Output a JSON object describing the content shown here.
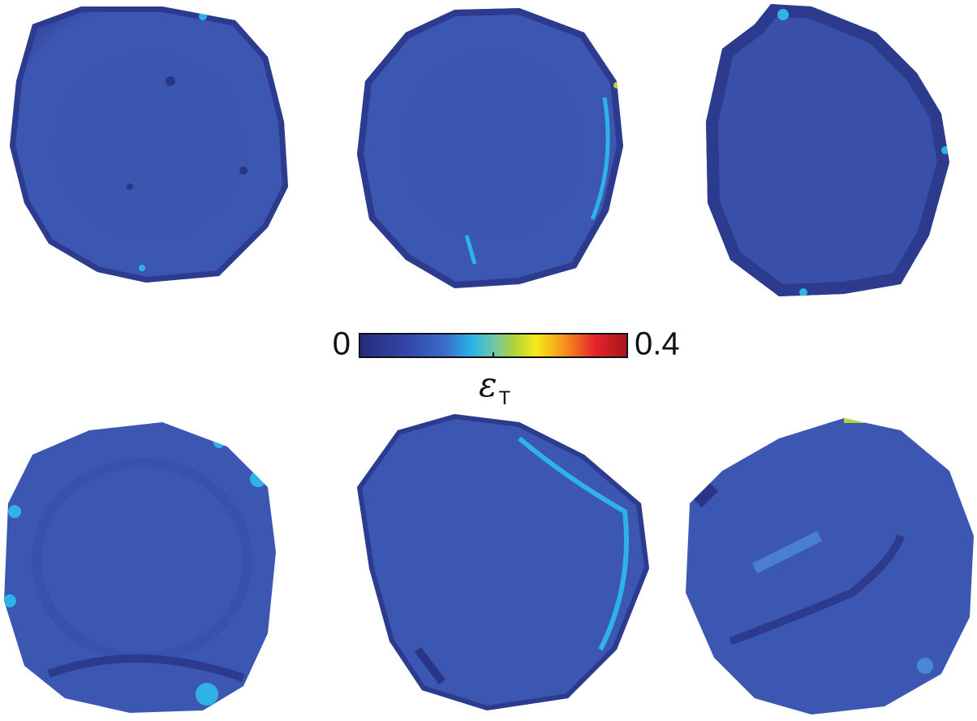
{
  "colorbar": {
    "lim": [
      0,
      0.4
    ],
    "ticks": [
      0.2
    ],
    "symbol": "ε",
    "subscript": "T"
  }
}
